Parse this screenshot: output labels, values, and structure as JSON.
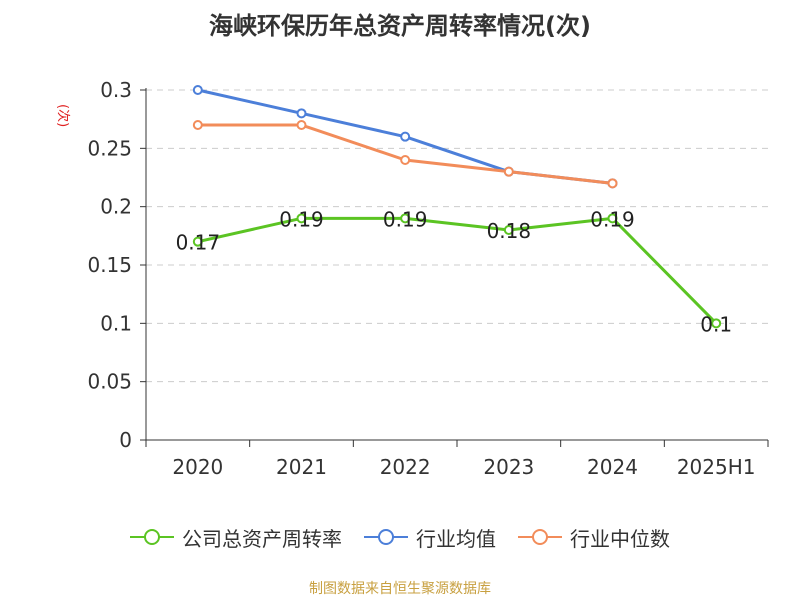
{
  "title": "海峡环保历年总资产周转率情况(次)",
  "source": "制图数据来自恒生聚源数据库",
  "colors": {
    "company": "#5bc423",
    "industry_avg": "#4c7fd9",
    "industry_median": "#f28c5a",
    "grid": "#cccccc",
    "axis": "#333333"
  },
  "chart_data": {
    "type": "line",
    "title": "海峡环保历年总资产周转率情况(次)",
    "ylabel": "(次)",
    "xlabel": "",
    "categories": [
      "2020",
      "2021",
      "2022",
      "2023",
      "2024",
      "2025H1"
    ],
    "y_ticks": [
      "0",
      "0.05",
      "0.1",
      "0.15",
      "0.2",
      "0.25",
      "0.3"
    ],
    "ylim": [
      0,
      0.3
    ],
    "grid": true,
    "legend_position": "bottom",
    "series": [
      {
        "name": "公司总资产周转率",
        "values": [
          0.17,
          0.19,
          0.19,
          0.18,
          0.19,
          0.1
        ],
        "data_labels": [
          "0.17",
          "0.19",
          "0.19",
          "0.18",
          "0.19",
          "0.1"
        ]
      },
      {
        "name": "行业均值",
        "values": [
          0.3,
          0.28,
          0.26,
          0.23,
          0.22,
          null
        ]
      },
      {
        "name": "行业中位数",
        "values": [
          0.27,
          0.27,
          0.24,
          0.23,
          0.22,
          null
        ]
      }
    ]
  }
}
